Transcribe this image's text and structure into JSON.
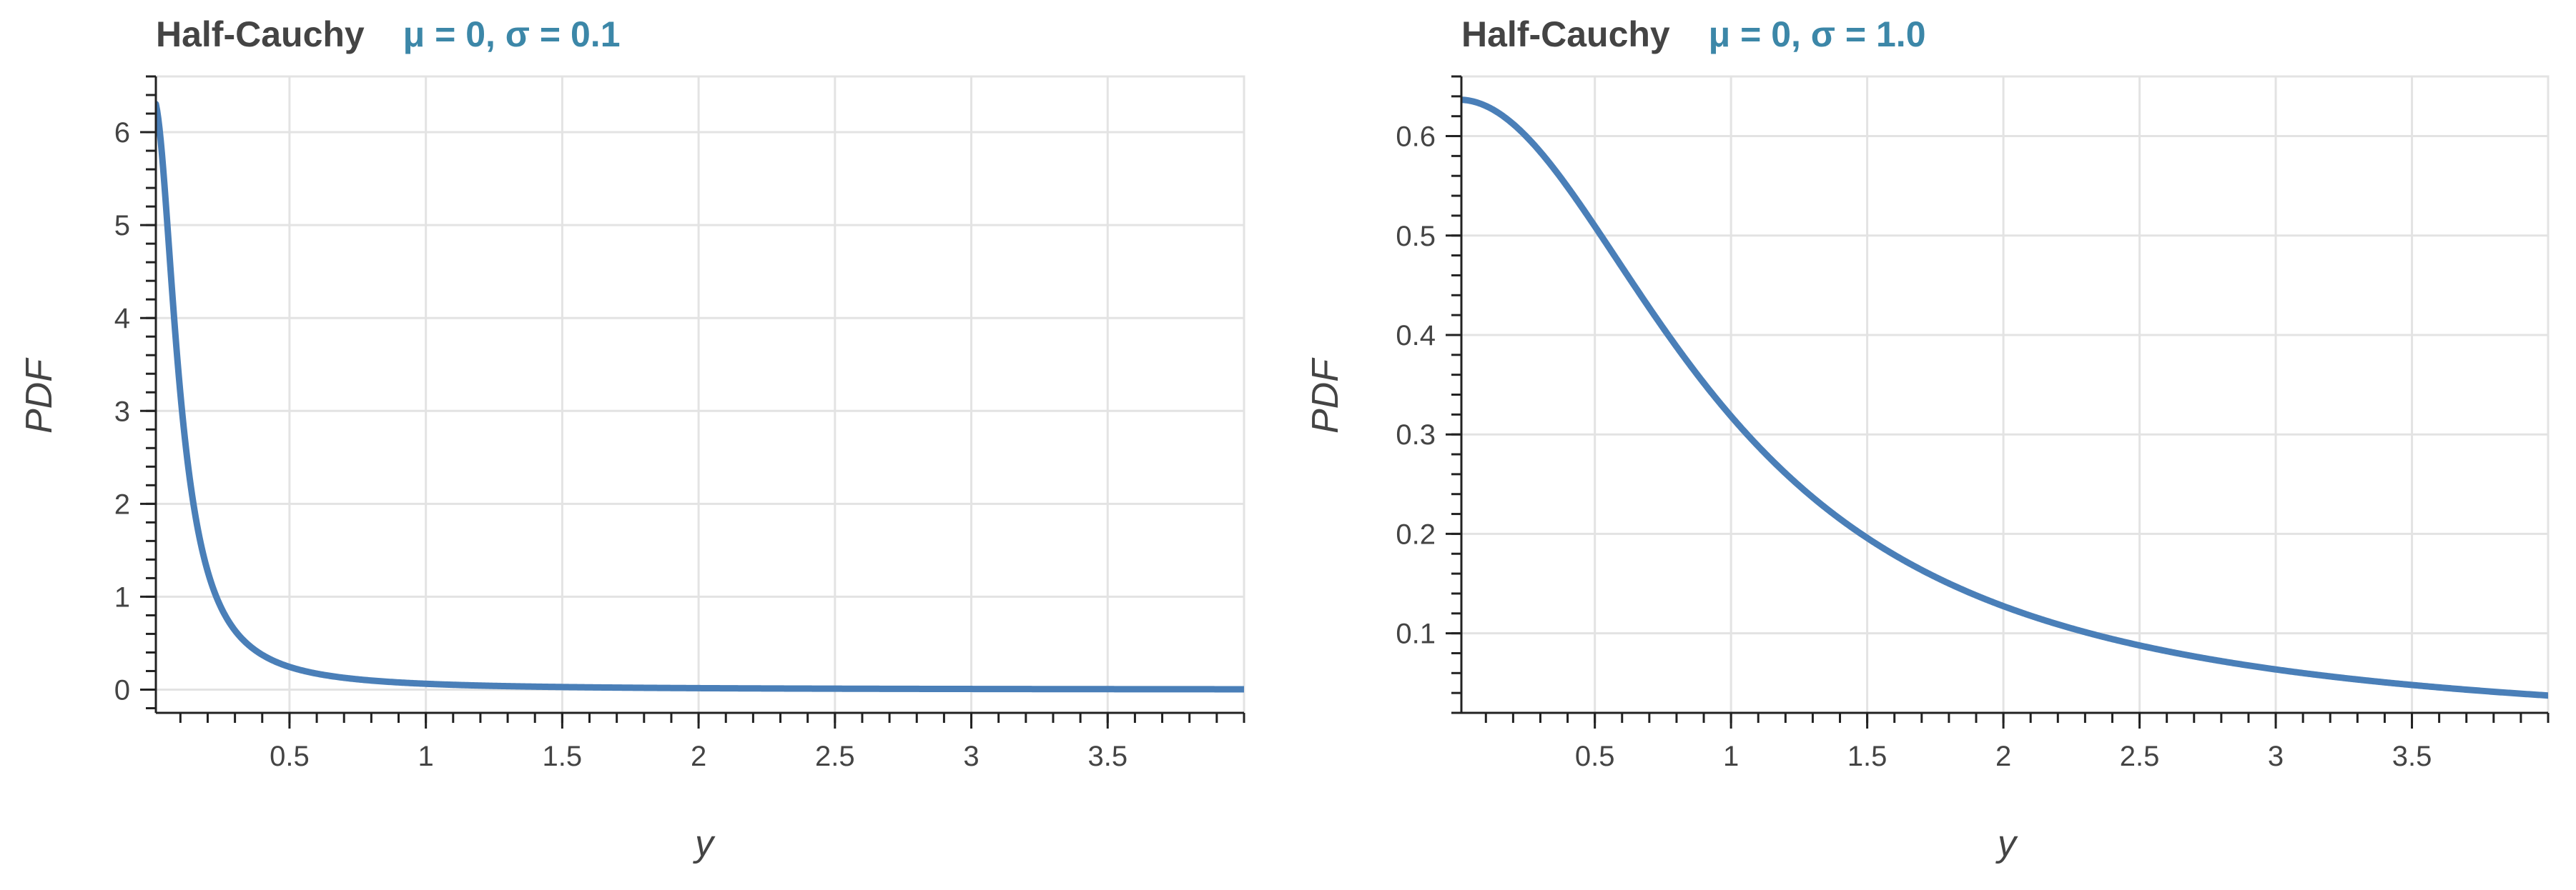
{
  "chart_data": [
    {
      "type": "line",
      "title": "Half-Cauchy",
      "subtitle": "μ = 0, σ = 0.1",
      "xlabel": "y",
      "ylabel": "PDF",
      "mu": 0,
      "sigma": 0.1,
      "xlim": [
        0.01,
        4
      ],
      "ylim": [
        -0.25,
        6.6
      ],
      "x_ticks": [
        {
          "value": 0.5,
          "label": "0.5"
        },
        {
          "value": 1,
          "label": "1"
        },
        {
          "value": 1.5,
          "label": "1.5"
        },
        {
          "value": 2,
          "label": "2"
        },
        {
          "value": 2.5,
          "label": "2.5"
        },
        {
          "value": 3,
          "label": "3"
        },
        {
          "value": 3.5,
          "label": "3.5"
        }
      ],
      "y_ticks": [
        {
          "value": 0,
          "label": "0"
        },
        {
          "value": 1,
          "label": "1"
        },
        {
          "value": 2,
          "label": "2"
        },
        {
          "value": 3,
          "label": "3"
        },
        {
          "value": 4,
          "label": "4"
        },
        {
          "value": 5,
          "label": "5"
        },
        {
          "value": 6,
          "label": "6"
        }
      ],
      "x_minor_step": 0.1,
      "y_minor_step": 0.2,
      "grid": true,
      "series": [
        {
          "color": "#4a7fb8"
        }
      ]
    },
    {
      "type": "line",
      "title": "Half-Cauchy",
      "subtitle": "μ = 0, σ = 1.0",
      "xlabel": "y",
      "ylabel": "PDF",
      "mu": 0,
      "sigma": 1.0,
      "xlim": [
        0.01,
        4
      ],
      "ylim": [
        0.02,
        0.66
      ],
      "x_ticks": [
        {
          "value": 0.5,
          "label": "0.5"
        },
        {
          "value": 1,
          "label": "1"
        },
        {
          "value": 1.5,
          "label": "1.5"
        },
        {
          "value": 2,
          "label": "2"
        },
        {
          "value": 2.5,
          "label": "2.5"
        },
        {
          "value": 3,
          "label": "3"
        },
        {
          "value": 3.5,
          "label": "3.5"
        }
      ],
      "y_ticks": [
        {
          "value": 0.1,
          "label": "0.1"
        },
        {
          "value": 0.2,
          "label": "0.2"
        },
        {
          "value": 0.3,
          "label": "0.3"
        },
        {
          "value": 0.4,
          "label": "0.4"
        },
        {
          "value": 0.5,
          "label": "0.5"
        },
        {
          "value": 0.6,
          "label": "0.6"
        }
      ],
      "x_minor_step": 0.1,
      "y_minor_step": 0.02,
      "grid": true,
      "series": [
        {
          "color": "#4a7fb8"
        }
      ]
    }
  ]
}
